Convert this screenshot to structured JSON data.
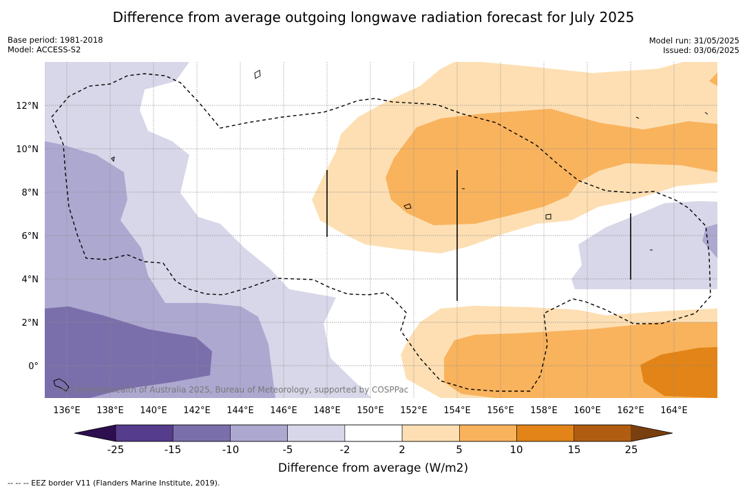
{
  "title": "Difference from average outgoing longwave radiation forecast for July 2025",
  "meta_left": [
    "Base period: 1981-2018",
    "Model: ACCESS-S2"
  ],
  "meta_right": [
    "Model run: 31/05/2025",
    "Issued: 03/06/2025"
  ],
  "map": {
    "lon_range": [
      135,
      166
    ],
    "lat_range": [
      -1.5,
      14
    ],
    "lon_ticks": [
      "136°E",
      "138°E",
      "140°E",
      "142°E",
      "144°E",
      "146°E",
      "148°E",
      "150°E",
      "152°E",
      "154°E",
      "156°E",
      "158°E",
      "160°E",
      "162°E",
      "164°E"
    ],
    "lat_ticks": [
      "12°N",
      "10°N",
      "8°N",
      "6°N",
      "4°N",
      "2°N",
      "0°"
    ],
    "copyright": "© Commonwealth of Australia 2025, Bureau of Meteorology, supported by COSPPac",
    "colors": {
      "c_m25": "#553c8c",
      "c_m15": "#7b6fab",
      "c_m10": "#ada8d0",
      "c_m5": "#d7d7e9",
      "c_pos2": "#fddfb3",
      "c_pos5": "#f9b35d",
      "c_pos10": "#e28417",
      "c_pos15": "#b15d11"
    }
  },
  "colorbar": {
    "labels": [
      "-25",
      "-15",
      "-10",
      "-5",
      "-2",
      "2",
      "5",
      "10",
      "15",
      "25"
    ],
    "title": "Difference from average (W/m2)",
    "colors": [
      "#553c8c",
      "#7b6fab",
      "#ada8d0",
      "#d7d7e9",
      "#ffffff",
      "#fddfb3",
      "#f9b35d",
      "#e28417",
      "#b15d11"
    ],
    "end_low": "#2d0f4f",
    "end_high": "#7a3f0f"
  },
  "footnote": "--  --  -- EEZ border V11 (Flanders Marine Institute, 2019)."
}
